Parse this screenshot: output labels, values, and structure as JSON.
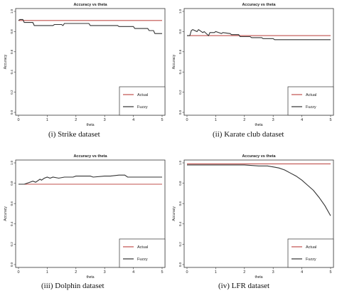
{
  "chart_data": [
    {
      "type": "line",
      "title": "Accuracy vs theta",
      "xlabel": "theta",
      "ylabel": "Accuracy",
      "xlim": [
        0,
        5
      ],
      "ylim": [
        0,
        1
      ],
      "xticks": [
        "0",
        "1",
        "2",
        "3",
        "4",
        "5"
      ],
      "yticks": [
        "0.0",
        "0.2",
        "0.4",
        "0.6",
        "0.8",
        "1.0"
      ],
      "legend": "bottom-right",
      "caption": "(i) Strike dataset",
      "series": [
        {
          "name": "Actual",
          "color": "#c0504d",
          "x": [
            0,
            5
          ],
          "y": [
            0.91,
            0.91
          ]
        },
        {
          "name": "Fuzzy",
          "color": "#333333",
          "x": [
            0,
            0.05,
            0.15,
            0.2,
            0.5,
            0.55,
            1.2,
            1.25,
            1.5,
            1.55,
            1.6,
            2.45,
            2.5,
            3.45,
            3.5,
            4.0,
            4.05,
            4.5,
            4.55,
            4.7,
            4.75,
            5.0
          ],
          "y": [
            0.91,
            0.92,
            0.92,
            0.89,
            0.89,
            0.86,
            0.86,
            0.87,
            0.87,
            0.86,
            0.88,
            0.88,
            0.86,
            0.86,
            0.85,
            0.85,
            0.83,
            0.83,
            0.81,
            0.81,
            0.78,
            0.78
          ]
        }
      ]
    },
    {
      "type": "line",
      "title": "Accuracy vs theta",
      "xlabel": "theta",
      "ylabel": "Accuracy",
      "xlim": [
        0,
        5
      ],
      "ylim": [
        0,
        1
      ],
      "xticks": [
        "0",
        "1",
        "2",
        "3",
        "4",
        "5"
      ],
      "yticks": [
        "0.0",
        "0.2",
        "0.4",
        "0.6",
        "0.8",
        "1.0"
      ],
      "legend": "bottom-right",
      "caption": "(ii) Karate club dataset",
      "series": [
        {
          "name": "Actual",
          "color": "#c0504d",
          "x": [
            0,
            5
          ],
          "y": [
            0.76,
            0.76
          ]
        },
        {
          "name": "Fuzzy",
          "color": "#333333",
          "x": [
            0,
            0.1,
            0.15,
            0.2,
            0.35,
            0.4,
            0.55,
            0.6,
            0.75,
            0.8,
            0.95,
            1.0,
            1.2,
            1.25,
            1.5,
            1.55,
            1.8,
            1.85,
            2.2,
            2.25,
            2.6,
            2.65,
            3.0,
            3.05,
            5.0
          ],
          "y": [
            0.76,
            0.76,
            0.81,
            0.82,
            0.8,
            0.82,
            0.79,
            0.8,
            0.76,
            0.79,
            0.79,
            0.8,
            0.78,
            0.79,
            0.78,
            0.77,
            0.77,
            0.75,
            0.75,
            0.74,
            0.74,
            0.73,
            0.73,
            0.72,
            0.72
          ]
        }
      ]
    },
    {
      "type": "line",
      "title": "Accuracy vs theta",
      "xlabel": "theta",
      "ylabel": "Accuracy",
      "xlim": [
        0,
        5
      ],
      "ylim": [
        0,
        1
      ],
      "xticks": [
        "0",
        "1",
        "2",
        "3",
        "4",
        "5"
      ],
      "yticks": [
        "0.0",
        "0.2",
        "0.4",
        "0.6",
        "0.8",
        "1.0"
      ],
      "legend": "bottom-right",
      "caption": "(iii) Dolphin dataset",
      "series": [
        {
          "name": "Actual",
          "color": "#c0504d",
          "x": [
            0,
            5
          ],
          "y": [
            0.79,
            0.79
          ]
        },
        {
          "name": "Fuzzy",
          "color": "#333333",
          "x": [
            0,
            0.2,
            0.3,
            0.5,
            0.6,
            0.75,
            0.8,
            0.9,
            1.0,
            1.1,
            1.2,
            1.4,
            1.6,
            1.9,
            2.0,
            2.5,
            2.6,
            3.0,
            3.2,
            3.5,
            3.7,
            3.8,
            4.5,
            5.0
          ],
          "y": [
            0.79,
            0.79,
            0.8,
            0.82,
            0.81,
            0.84,
            0.83,
            0.85,
            0.86,
            0.85,
            0.86,
            0.85,
            0.86,
            0.86,
            0.87,
            0.87,
            0.86,
            0.87,
            0.87,
            0.88,
            0.88,
            0.86,
            0.86,
            0.86
          ]
        }
      ]
    },
    {
      "type": "line",
      "title": "Accuracy vs theta",
      "xlabel": "theta",
      "ylabel": "Accuracy",
      "xlim": [
        0,
        5
      ],
      "ylim": [
        0,
        1
      ],
      "xticks": [
        "0",
        "1",
        "2",
        "3",
        "4",
        "5"
      ],
      "yticks": [
        "0.0",
        "0.2",
        "0.4",
        "0.6",
        "0.8",
        "1.0"
      ],
      "legend": "bottom-right",
      "caption": "(iv) LFR dataset",
      "series": [
        {
          "name": "Actual",
          "color": "#c0504d",
          "x": [
            0,
            5
          ],
          "y": [
            0.99,
            0.99
          ]
        },
        {
          "name": "Fuzzy",
          "color": "#333333",
          "x": [
            0,
            0.5,
            1.0,
            1.5,
            2.0,
            2.5,
            2.8,
            3.0,
            3.2,
            3.4,
            3.6,
            3.8,
            4.0,
            4.2,
            4.4,
            4.6,
            4.8,
            5.0
          ],
          "y": [
            0.98,
            0.98,
            0.98,
            0.98,
            0.98,
            0.97,
            0.97,
            0.96,
            0.95,
            0.93,
            0.9,
            0.87,
            0.83,
            0.78,
            0.73,
            0.66,
            0.58,
            0.48
          ]
        }
      ]
    }
  ]
}
